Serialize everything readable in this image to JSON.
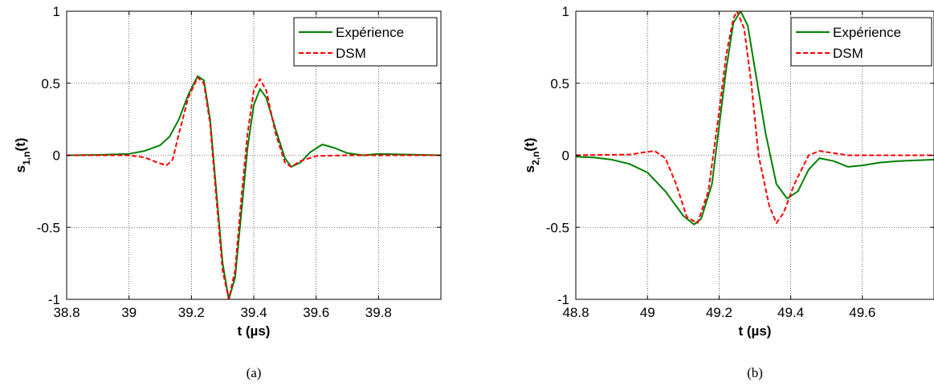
{
  "chart_data": [
    {
      "type": "line",
      "xlabel": "t (µs)",
      "ylabel_main": "s",
      "ylabel_sub": "1,n",
      "ylabel_suffix": "(t)",
      "caption": "(a)",
      "xlim": [
        38.8,
        40.0
      ],
      "ylim": [
        -1,
        1
      ],
      "xticks": [
        38.8,
        39,
        39.2,
        39.4,
        39.6,
        39.8
      ],
      "xtick_labels": [
        "38.8",
        "39",
        "39.2",
        "39.4",
        "39.6",
        "39.8"
      ],
      "yticks": [
        -1,
        -0.5,
        0,
        0.5,
        1
      ],
      "ytick_labels": [
        "-1",
        "-0.5",
        "0",
        "0.5",
        "1"
      ],
      "grid": true,
      "legend_position": "top-right",
      "series": [
        {
          "name": "Expérience",
          "color": "#008000",
          "dash": "solid",
          "points": [
            [
              38.8,
              0
            ],
            [
              38.9,
              0.003
            ],
            [
              39.0,
              0.01
            ],
            [
              39.05,
              0.03
            ],
            [
              39.1,
              0.07
            ],
            [
              39.13,
              0.13
            ],
            [
              39.16,
              0.25
            ],
            [
              39.19,
              0.42
            ],
            [
              39.22,
              0.55
            ],
            [
              39.24,
              0.52
            ],
            [
              39.26,
              0.25
            ],
            [
              39.28,
              -0.25
            ],
            [
              39.3,
              -0.75
            ],
            [
              39.32,
              -1.0
            ],
            [
              39.34,
              -0.85
            ],
            [
              39.36,
              -0.4
            ],
            [
              39.38,
              0.05
            ],
            [
              39.4,
              0.35
            ],
            [
              39.42,
              0.46
            ],
            [
              39.44,
              0.4
            ],
            [
              39.47,
              0.18
            ],
            [
              39.5,
              -0.02
            ],
            [
              39.52,
              -0.08
            ],
            [
              39.55,
              -0.05
            ],
            [
              39.58,
              0.02
            ],
            [
              39.62,
              0.075
            ],
            [
              39.66,
              0.05
            ],
            [
              39.7,
              0.015
            ],
            [
              39.75,
              0.0
            ],
            [
              39.8,
              0.01
            ],
            [
              39.9,
              0.005
            ],
            [
              40.0,
              0.0
            ]
          ]
        },
        {
          "name": "DSM",
          "color": "#ff0000",
          "dash": "dashed",
          "points": [
            [
              38.8,
              0
            ],
            [
              39.0,
              0.0
            ],
            [
              39.05,
              -0.015
            ],
            [
              39.09,
              -0.05
            ],
            [
              39.12,
              -0.07
            ],
            [
              39.14,
              -0.03
            ],
            [
              39.16,
              0.15
            ],
            [
              39.19,
              0.4
            ],
            [
              39.22,
              0.54
            ],
            [
              39.24,
              0.5
            ],
            [
              39.26,
              0.22
            ],
            [
              39.28,
              -0.3
            ],
            [
              39.3,
              -0.8
            ],
            [
              39.32,
              -1.0
            ],
            [
              39.34,
              -0.8
            ],
            [
              39.36,
              -0.3
            ],
            [
              39.38,
              0.15
            ],
            [
              39.4,
              0.45
            ],
            [
              39.42,
              0.53
            ],
            [
              39.44,
              0.45
            ],
            [
              39.47,
              0.15
            ],
            [
              39.5,
              -0.05
            ],
            [
              39.52,
              -0.08
            ],
            [
              39.55,
              -0.04
            ],
            [
              39.6,
              -0.005
            ],
            [
              39.7,
              0.0
            ],
            [
              40.0,
              0.0
            ]
          ]
        }
      ]
    },
    {
      "type": "line",
      "xlabel": "t (µs)",
      "ylabel_main": "s",
      "ylabel_sub": "2,n",
      "ylabel_suffix": "(t)",
      "caption": "(b)",
      "xlim": [
        48.8,
        49.8
      ],
      "ylim": [
        -1,
        1
      ],
      "xticks": [
        48.8,
        49,
        49.2,
        49.4,
        49.6
      ],
      "xtick_labels": [
        "48.8",
        "49",
        "49.2",
        "49.4",
        "49.6"
      ],
      "yticks": [
        -1,
        -0.5,
        0,
        0.5,
        1
      ],
      "ytick_labels": [
        "-1",
        "-0.5",
        "0",
        "0.5",
        "1"
      ],
      "grid": true,
      "legend_position": "top-right",
      "series": [
        {
          "name": "Expérience",
          "color": "#008000",
          "dash": "solid",
          "points": [
            [
              48.8,
              -0.01
            ],
            [
              48.85,
              -0.015
            ],
            [
              48.9,
              -0.03
            ],
            [
              48.95,
              -0.06
            ],
            [
              49.0,
              -0.12
            ],
            [
              49.05,
              -0.25
            ],
            [
              49.1,
              -0.42
            ],
            [
              49.13,
              -0.48
            ],
            [
              49.15,
              -0.44
            ],
            [
              49.18,
              -0.2
            ],
            [
              49.2,
              0.2
            ],
            [
              49.22,
              0.6
            ],
            [
              49.24,
              0.92
            ],
            [
              49.26,
              1.0
            ],
            [
              49.28,
              0.9
            ],
            [
              49.3,
              0.6
            ],
            [
              49.33,
              0.15
            ],
            [
              49.36,
              -0.2
            ],
            [
              49.39,
              -0.3
            ],
            [
              49.42,
              -0.25
            ],
            [
              49.45,
              -0.1
            ],
            [
              49.48,
              -0.02
            ],
            [
              49.52,
              -0.04
            ],
            [
              49.56,
              -0.08
            ],
            [
              49.6,
              -0.07
            ],
            [
              49.65,
              -0.05
            ],
            [
              49.7,
              -0.04
            ],
            [
              49.8,
              -0.03
            ]
          ]
        },
        {
          "name": "DSM",
          "color": "#ff0000",
          "dash": "dashed",
          "points": [
            [
              48.8,
              0
            ],
            [
              48.95,
              0.005
            ],
            [
              48.99,
              0.02
            ],
            [
              49.02,
              0.03
            ],
            [
              49.05,
              -0.02
            ],
            [
              49.08,
              -0.2
            ],
            [
              49.11,
              -0.43
            ],
            [
              49.14,
              -0.47
            ],
            [
              49.17,
              -0.25
            ],
            [
              49.2,
              0.3
            ],
            [
              49.22,
              0.7
            ],
            [
              49.24,
              0.95
            ],
            [
              49.25,
              1.0
            ],
            [
              49.27,
              0.88
            ],
            [
              49.29,
              0.5
            ],
            [
              49.31,
              0.0
            ],
            [
              49.34,
              -0.35
            ],
            [
              49.36,
              -0.47
            ],
            [
              49.38,
              -0.4
            ],
            [
              49.41,
              -0.2
            ],
            [
              49.45,
              0.0
            ],
            [
              49.48,
              0.03
            ],
            [
              49.52,
              0.015
            ],
            [
              49.56,
              0.0
            ],
            [
              49.6,
              0.0
            ],
            [
              49.8,
              0.0
            ]
          ]
        }
      ]
    }
  ]
}
